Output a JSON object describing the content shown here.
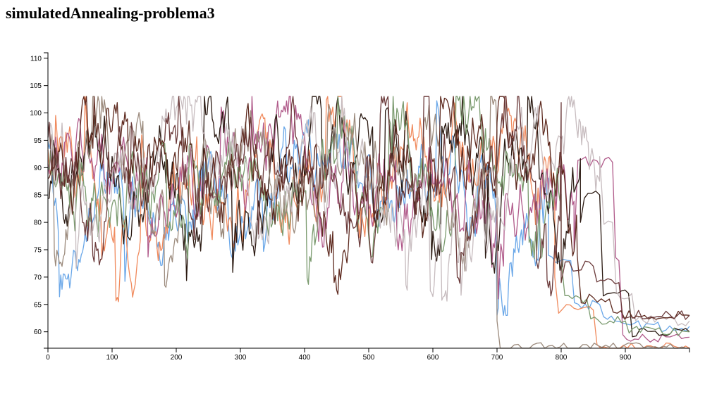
{
  "title": "simulatedAnnealing-problema3",
  "chart_data": {
    "type": "line",
    "title": "simulatedAnnealing-problema3",
    "xlabel": "",
    "ylabel": "",
    "xlim": [
      0,
      1000
    ],
    "ylim": [
      57,
      111
    ],
    "x_ticks": [
      0,
      100,
      200,
      300,
      400,
      500,
      600,
      700,
      800,
      900
    ],
    "y_ticks": [
      60,
      65,
      70,
      75,
      80,
      85,
      90,
      95,
      100,
      105,
      110
    ],
    "grid": false,
    "legend": "none",
    "series": [
      {
        "color": "#6aa7e8",
        "start": 91,
        "plateaus": [
          [
            780,
            74
          ],
          [
            815,
            73
          ],
          [
            860,
            65
          ],
          [
            920,
            62
          ],
          [
            1000,
            61
          ]
        ],
        "min": 63,
        "max": 103,
        "seed": 11
      },
      {
        "color": "#f08a5d",
        "start": 95,
        "plateaus": [
          [
            790,
            70
          ],
          [
            850,
            64
          ],
          [
            885,
            57
          ],
          [
            1000,
            57
          ]
        ],
        "min": 63,
        "max": 103,
        "seed": 23
      },
      {
        "color": "#b05a8a",
        "start": 89,
        "plateaus": [
          [
            820,
            75
          ],
          [
            880,
            91
          ],
          [
            890,
            73
          ],
          [
            1000,
            59
          ]
        ],
        "min": 63,
        "max": 103,
        "seed": 37
      },
      {
        "color": "#2b1a12",
        "start": 84,
        "plateaus": [
          [
            830,
            80
          ],
          [
            860,
            85
          ],
          [
            905,
            67
          ],
          [
            1000,
            60
          ]
        ],
        "min": 63,
        "max": 103,
        "seed": 41
      },
      {
        "color": "#7a9a6e",
        "start": 86,
        "plateaus": [
          [
            800,
            73
          ],
          [
            840,
            66
          ],
          [
            900,
            62
          ],
          [
            1000,
            60
          ]
        ],
        "min": 63,
        "max": 103,
        "seed": 53
      },
      {
        "color": "#9c8b7d",
        "start": 100,
        "plateaus": [
          [
            700,
            62
          ],
          [
            715,
            57
          ],
          [
            1000,
            57
          ]
        ],
        "min": 63,
        "max": 103,
        "seed": 67
      },
      {
        "color": "#c7bcbf",
        "start": 102,
        "plateaus": [
          [
            860,
            92
          ],
          [
            880,
            80
          ],
          [
            910,
            67
          ],
          [
            1000,
            62
          ]
        ],
        "min": 63,
        "max": 103,
        "seed": 71
      },
      {
        "color": "#5e2a1f",
        "start": 88,
        "plateaus": [
          [
            825,
            74
          ],
          [
            875,
            66
          ],
          [
            930,
            63
          ],
          [
            1000,
            63
          ]
        ],
        "min": 63,
        "max": 103,
        "seed": 83
      },
      {
        "color": "#6b3a3a",
        "start": 93,
        "plateaus": [
          [
            800,
            69
          ],
          [
            850,
            72
          ],
          [
            890,
            69
          ],
          [
            1000,
            63
          ]
        ],
        "min": 63,
        "max": 103,
        "seed": 97
      }
    ]
  }
}
